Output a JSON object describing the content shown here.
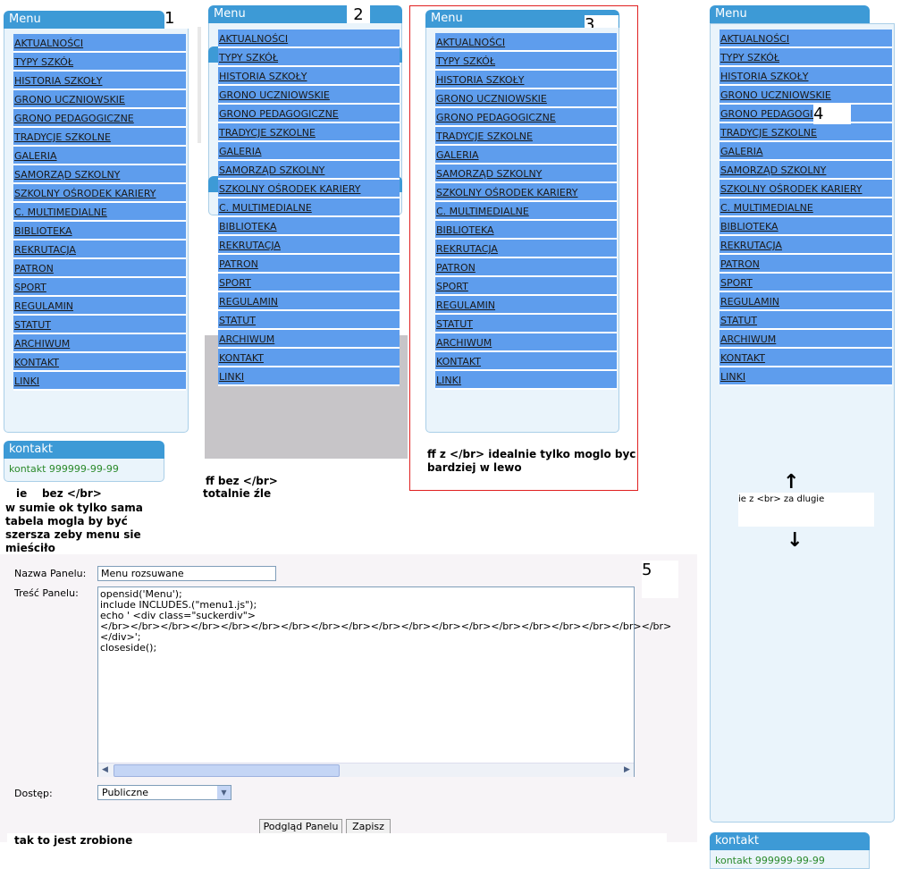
{
  "menu_items": [
    "AKTUALNOŚCI",
    "TYPY SZKÓŁ",
    "HISTORIA SZKOŁY",
    "GRONO UCZNIOWSKIE",
    "GRONO PEDAGOGICZNE",
    "TRADYCJE SZKOLNE",
    "GALERIA",
    "SAMORZĄD SZKOLNY",
    "SZKOLNY OŚRODEK KARIERY",
    "C. MULTIMEDIALNE",
    "BIBLIOTEKA",
    "REKRUTACJA",
    "PATRON",
    "SPORT",
    "REGULAMIN",
    "STATUT",
    "ARCHIWUM",
    "KONTAKT",
    "LINKI"
  ],
  "panel_title": "Menu",
  "contact_title": "kontakt",
  "contact_text": "kontakt 999999-99-99",
  "labels": {
    "n1": "1",
    "n2": "2",
    "n3": "3",
    "n4": "4",
    "n5": "5"
  },
  "notes": {
    "ie_bez": "ie    bez </br>",
    "ie_desc1": "w sumie ok tylko sama",
    "ie_desc2": "tabela mogla by być",
    "ie_desc3": "szersza zeby menu sie",
    "ie_desc4": "mieściło",
    "ff_bez1": "ff bez </br>",
    "ff_bez2": "totalnie źle",
    "ff_z1": "ff z </br> idealnie tylko moglo byc",
    "ff_z2": "bardziej w lewo",
    "ie_z": "ie z <br> za dlugie",
    "tak": "tak to jest zrobione"
  },
  "form": {
    "name_label": "Nazwa Panelu:",
    "name_value": "Menu rozsuwane",
    "content_label": "Treść Panelu:",
    "code_lines": [
      "opensid('Menu');",
      "include INCLUDES.(\"menu1.js\");",
      "echo ' <div class=\"suckerdiv\">",
      "</br></br></br></br></br></br></br></br></br></br></br></br></br></br></br></br></br></br></br>",
      "</div>';",
      "closeside();"
    ],
    "access_label": "Dostęp:",
    "access_value": "Publiczne",
    "preview_button": "Podgląd Panelu",
    "save_button": "Zapisz"
  }
}
